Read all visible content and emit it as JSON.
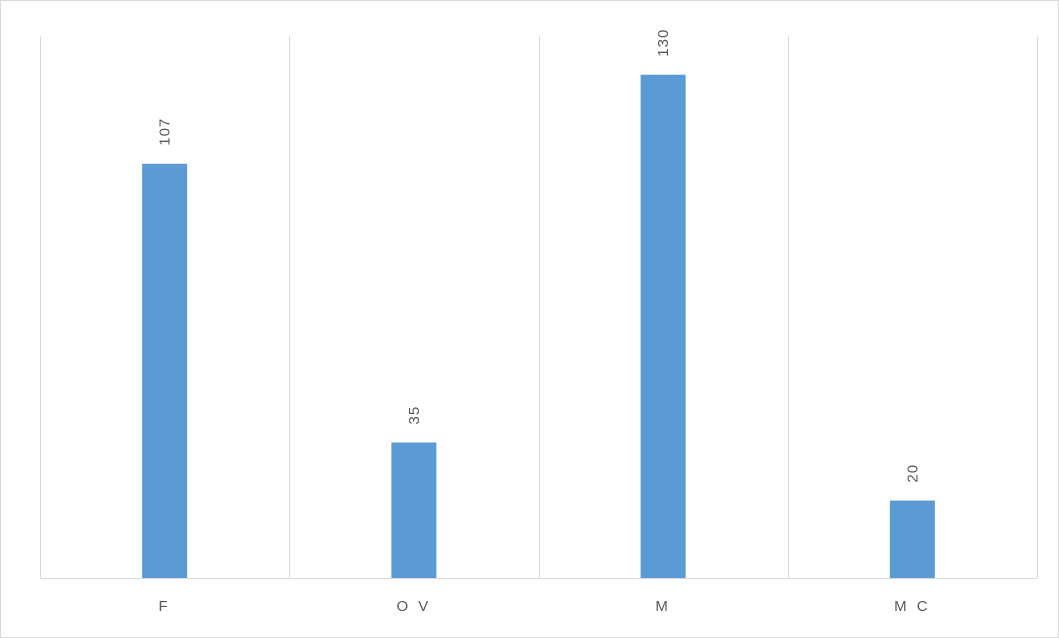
{
  "chart_data": {
    "type": "bar",
    "categories": [
      "F",
      "O V",
      "M",
      "M C"
    ],
    "values": [
      107,
      35,
      130,
      20
    ],
    "data_labels": [
      "107",
      "35",
      "130",
      "20"
    ],
    "title": "",
    "xlabel": "",
    "ylabel": "",
    "ylim": [
      0,
      140
    ],
    "grid": "vertical category separators",
    "legend": "none",
    "bar_color": "#5b9bd5",
    "gridline_color": "#d9d9d9",
    "text_color": "#595959"
  }
}
